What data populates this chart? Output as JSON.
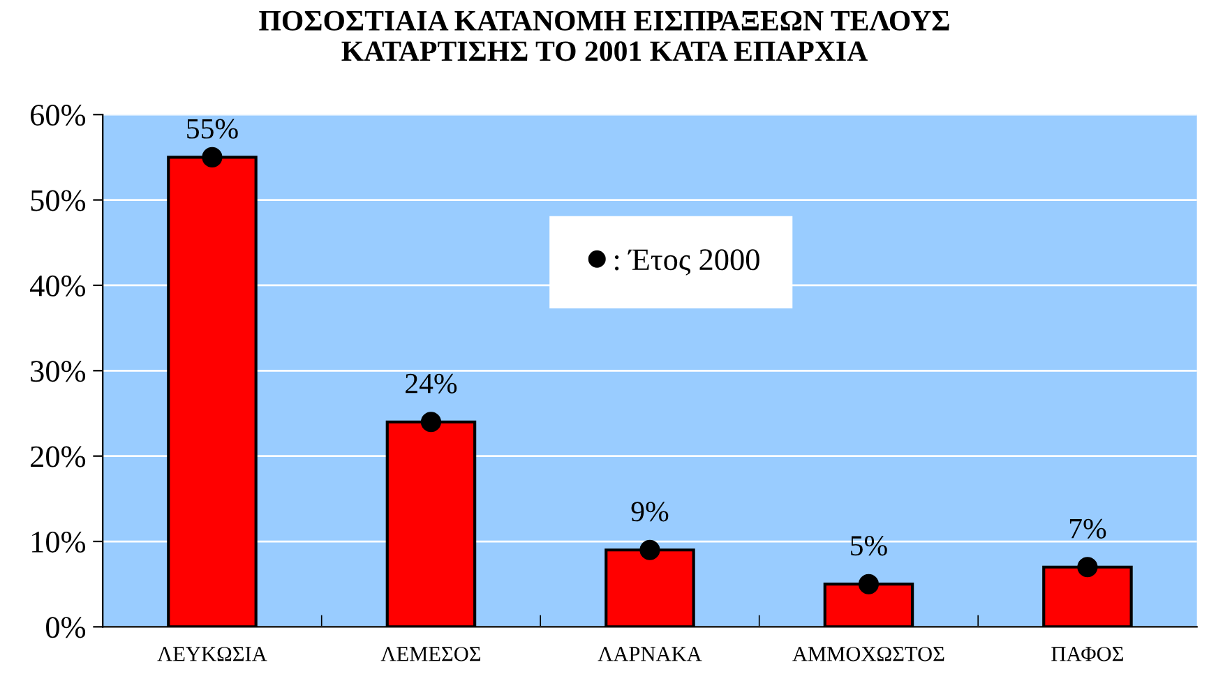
{
  "chart_data": {
    "type": "bar",
    "title": "ΠΟΣΟΣΤΙΑΙΑ ΚΑΤΑΝΟΜΗ ΕΙΣΠΡΑΞΕΩΝ ΤΕΛΟΥΣ\nΚΑΤΑΡΤΙΣΗΣ ΤΟ 2001 ΚΑΤΑ ΕΠΑΡΧΙΑ",
    "categories": [
      "ΛΕΥΚΩΣΙΑ",
      "ΛΕΜΕΣΟΣ",
      "ΛΑΡΝΑΚΑ",
      "ΑΜΜΟΧΩΣΤΟΣ",
      "ΠΑΦΟΣ"
    ],
    "series": [
      {
        "color": "#ff0000",
        "values": [
          55,
          24,
          9,
          5,
          7
        ],
        "value_labels": [
          "55%",
          "24%",
          "9%",
          "5%",
          "7%"
        ]
      },
      {
        "type": "scatter",
        "name": ": Έτος 2000",
        "color": "#000000",
        "x": [
          "ΛΕΥΚΩΣΙΑ",
          "ΛΕΜΕΣΟΣ",
          "ΛΑΡΝΑΚΑ",
          "ΑΜΜΟΧΩΣΤΟΣ",
          "ΠΑΦΟΣ"
        ],
        "values": [
          55,
          24,
          9,
          5,
          7
        ],
        "marker": "circle"
      }
    ],
    "ylim": [
      0,
      60
    ],
    "yticks": [
      {
        "value": 0,
        "label": "0%"
      },
      {
        "value": 10,
        "label": "10%"
      },
      {
        "value": 20,
        "label": "20%"
      },
      {
        "value": 30,
        "label": "30%"
      },
      {
        "value": 40,
        "label": "40%"
      },
      {
        "value": 50,
        "label": "50%"
      },
      {
        "value": 60,
        "label": "60%"
      }
    ],
    "grid": "y",
    "legend": "top right"
  }
}
